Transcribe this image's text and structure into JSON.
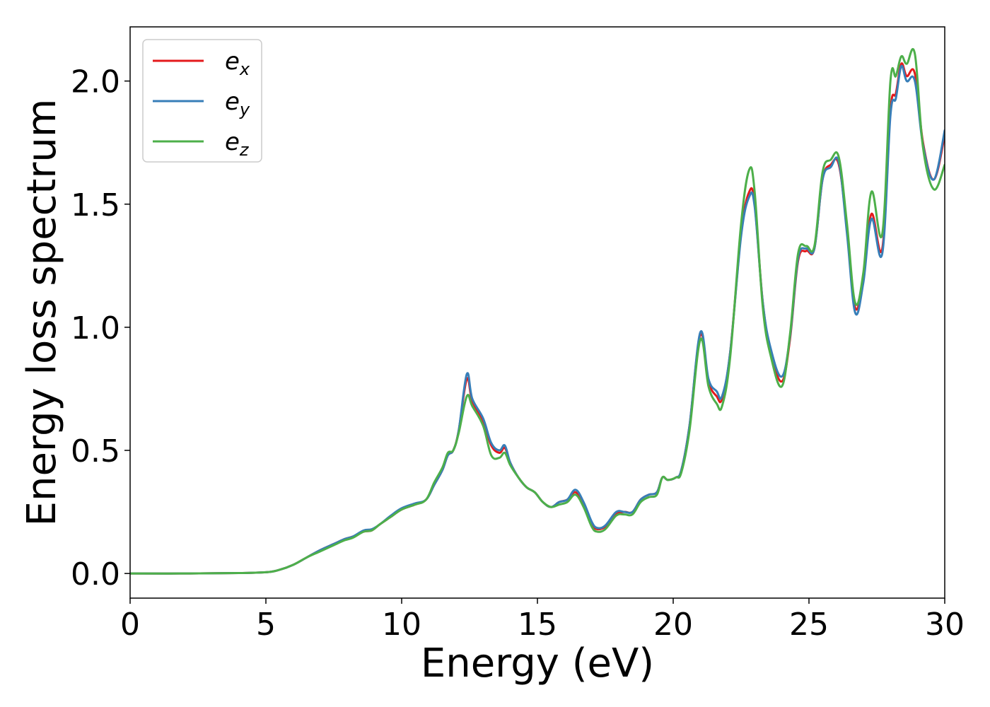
{
  "chart_data": {
    "type": "line",
    "title": "",
    "xlabel": "Energy (eV)",
    "ylabel": "Energy loss spectrum",
    "xlim": [
      0,
      30
    ],
    "ylim": [
      -0.1,
      2.22
    ],
    "xticks": [
      "0",
      "5",
      "10",
      "15",
      "20",
      "25",
      "30"
    ],
    "yticks": [
      "0.0",
      "0.5",
      "1.0",
      "1.5",
      "2.0"
    ],
    "grid": false,
    "legend": "upper-left",
    "series": [
      {
        "name": "e",
        "subscript": "x",
        "color": "#e41a1c",
        "x": [
          0,
          2,
          4,
          5,
          5.5,
          6,
          6.5,
          7,
          7.5,
          7.9,
          8.2,
          8.6,
          8.9,
          9.2,
          9.6,
          10.0,
          10.5,
          10.9,
          11.2,
          11.5,
          11.7,
          11.9,
          12.1,
          12.4,
          12.6,
          13.0,
          13.3,
          13.6,
          13.8,
          14.0,
          14.3,
          14.6,
          14.9,
          15.2,
          15.5,
          15.8,
          16.1,
          16.4,
          16.7,
          17.0,
          17.2,
          17.5,
          17.9,
          18.2,
          18.5,
          18.8,
          19.1,
          19.4,
          19.6,
          19.8,
          20.1,
          20.3,
          20.6,
          21.0,
          21.3,
          21.6,
          21.8,
          22.1,
          22.5,
          22.8,
          23.0,
          23.3,
          23.6,
          24.0,
          24.3,
          24.6,
          24.9,
          25.2,
          25.5,
          25.8,
          26.1,
          26.4,
          26.7,
          27.0,
          27.3,
          27.7,
          28.0,
          28.2,
          28.4,
          28.6,
          28.9,
          29.2,
          29.6,
          30.0
        ],
        "y": [
          0,
          0,
          0.002,
          0.005,
          0.015,
          0.035,
          0.065,
          0.095,
          0.12,
          0.14,
          0.15,
          0.17,
          0.175,
          0.2,
          0.23,
          0.26,
          0.28,
          0.3,
          0.36,
          0.42,
          0.48,
          0.5,
          0.58,
          0.79,
          0.7,
          0.62,
          0.52,
          0.49,
          0.51,
          0.45,
          0.39,
          0.35,
          0.33,
          0.29,
          0.27,
          0.29,
          0.3,
          0.33,
          0.28,
          0.2,
          0.18,
          0.19,
          0.24,
          0.25,
          0.25,
          0.3,
          0.32,
          0.33,
          0.39,
          0.38,
          0.39,
          0.42,
          0.6,
          0.97,
          0.78,
          0.72,
          0.71,
          0.9,
          1.38,
          1.55,
          1.5,
          1.1,
          0.9,
          0.78,
          0.95,
          1.27,
          1.31,
          1.32,
          1.6,
          1.66,
          1.66,
          1.4,
          1.08,
          1.2,
          1.46,
          1.32,
          1.88,
          1.95,
          2.07,
          2.02,
          2.03,
          1.75,
          1.6,
          1.78
        ]
      },
      {
        "name": "e",
        "subscript": "y",
        "color": "#377eb8",
        "x": [
          0,
          2,
          4,
          5,
          5.5,
          6,
          6.5,
          7,
          7.5,
          7.9,
          8.2,
          8.6,
          8.9,
          9.2,
          9.6,
          10.0,
          10.5,
          10.9,
          11.2,
          11.5,
          11.7,
          11.9,
          12.1,
          12.4,
          12.6,
          13.0,
          13.3,
          13.6,
          13.8,
          14.0,
          14.3,
          14.6,
          14.9,
          15.2,
          15.5,
          15.8,
          16.1,
          16.4,
          16.7,
          17.0,
          17.2,
          17.5,
          17.9,
          18.2,
          18.5,
          18.8,
          19.1,
          19.4,
          19.6,
          19.8,
          20.1,
          20.3,
          20.6,
          21.0,
          21.3,
          21.6,
          21.8,
          22.1,
          22.5,
          22.8,
          23.0,
          23.3,
          23.6,
          24.0,
          24.3,
          24.6,
          24.9,
          25.2,
          25.5,
          25.8,
          26.1,
          26.4,
          26.7,
          27.0,
          27.3,
          27.7,
          28.0,
          28.2,
          28.4,
          28.6,
          28.9,
          29.2,
          29.6,
          30.0
        ],
        "y": [
          0,
          0,
          0.002,
          0.005,
          0.015,
          0.035,
          0.065,
          0.095,
          0.12,
          0.14,
          0.15,
          0.175,
          0.18,
          0.2,
          0.235,
          0.265,
          0.285,
          0.3,
          0.36,
          0.42,
          0.48,
          0.5,
          0.58,
          0.81,
          0.71,
          0.63,
          0.53,
          0.5,
          0.52,
          0.45,
          0.39,
          0.35,
          0.33,
          0.29,
          0.27,
          0.29,
          0.3,
          0.34,
          0.29,
          0.21,
          0.185,
          0.195,
          0.25,
          0.25,
          0.25,
          0.3,
          0.32,
          0.33,
          0.39,
          0.38,
          0.39,
          0.42,
          0.6,
          0.98,
          0.79,
          0.74,
          0.72,
          0.9,
          1.37,
          1.53,
          1.49,
          1.1,
          0.91,
          0.8,
          0.96,
          1.28,
          1.32,
          1.32,
          1.6,
          1.65,
          1.67,
          1.38,
          1.06,
          1.18,
          1.44,
          1.3,
          1.86,
          1.93,
          2.06,
          2.0,
          2.0,
          1.74,
          1.6,
          1.8
        ]
      },
      {
        "name": "e",
        "subscript": "z",
        "color": "#4daf4a",
        "x": [
          0,
          2,
          4,
          5,
          5.5,
          6,
          6.5,
          7,
          7.5,
          7.9,
          8.2,
          8.6,
          8.9,
          9.2,
          9.6,
          10.0,
          10.5,
          10.9,
          11.2,
          11.5,
          11.7,
          11.9,
          12.1,
          12.4,
          12.6,
          13.0,
          13.3,
          13.6,
          13.8,
          14.0,
          14.3,
          14.6,
          14.9,
          15.2,
          15.5,
          15.8,
          16.1,
          16.4,
          16.7,
          17.0,
          17.2,
          17.5,
          17.9,
          18.2,
          18.5,
          18.8,
          19.1,
          19.4,
          19.6,
          19.8,
          20.1,
          20.3,
          20.6,
          21.0,
          21.3,
          21.6,
          21.8,
          22.1,
          22.5,
          22.8,
          23.0,
          23.3,
          23.6,
          24.0,
          24.3,
          24.6,
          24.9,
          25.2,
          25.5,
          25.8,
          26.1,
          26.4,
          26.7,
          27.0,
          27.3,
          27.7,
          28.0,
          28.2,
          28.4,
          28.6,
          28.9,
          29.2,
          29.6,
          30.0
        ],
        "y": [
          0,
          0,
          0.002,
          0.005,
          0.015,
          0.035,
          0.065,
          0.09,
          0.115,
          0.135,
          0.145,
          0.17,
          0.175,
          0.2,
          0.23,
          0.26,
          0.28,
          0.3,
          0.37,
          0.43,
          0.49,
          0.5,
          0.57,
          0.72,
          0.68,
          0.6,
          0.48,
          0.47,
          0.49,
          0.44,
          0.39,
          0.35,
          0.33,
          0.29,
          0.27,
          0.28,
          0.29,
          0.32,
          0.27,
          0.19,
          0.17,
          0.18,
          0.235,
          0.24,
          0.24,
          0.29,
          0.31,
          0.32,
          0.39,
          0.38,
          0.39,
          0.41,
          0.58,
          0.95,
          0.76,
          0.69,
          0.68,
          0.88,
          1.42,
          1.64,
          1.55,
          1.08,
          0.88,
          0.76,
          0.97,
          1.3,
          1.33,
          1.33,
          1.63,
          1.68,
          1.69,
          1.42,
          1.1,
          1.22,
          1.55,
          1.38,
          2.0,
          2.02,
          2.1,
          2.07,
          2.11,
          1.73,
          1.56,
          1.66
        ]
      }
    ]
  }
}
